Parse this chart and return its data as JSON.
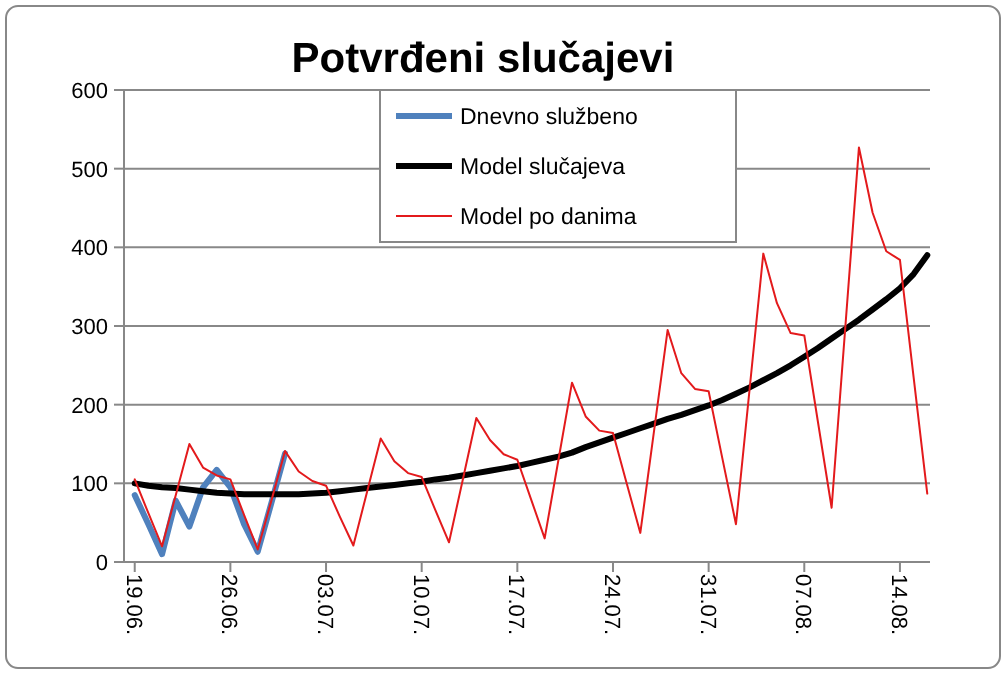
{
  "chart_data": {
    "type": "line",
    "title": "Potvrđeni slučajevi",
    "categories": [
      "19.06.",
      null,
      null,
      null,
      null,
      null,
      null,
      "26.06.",
      null,
      null,
      null,
      null,
      null,
      null,
      "03.07.",
      null,
      null,
      null,
      null,
      null,
      null,
      "10.07.",
      null,
      null,
      null,
      null,
      null,
      null,
      "17.07.",
      null,
      null,
      null,
      null,
      null,
      null,
      "24.07.",
      null,
      null,
      null,
      null,
      null,
      null,
      "31.07.",
      null,
      null,
      null,
      null,
      null,
      null,
      "07.08.",
      null,
      null,
      null,
      null,
      null,
      null,
      "14.08.",
      null,
      null
    ],
    "series": [
      {
        "name": "Dnevno službeno",
        "color": "#4f81bd",
        "values": [
          85,
          48,
          10,
          78,
          45,
          95,
          117,
          95,
          48,
          13,
          75,
          138,
          null,
          null,
          null,
          null,
          null,
          null,
          null,
          null,
          null,
          null,
          null,
          null,
          null,
          null,
          null,
          null,
          null,
          null,
          null,
          null,
          null,
          null,
          null,
          null,
          null,
          null,
          null,
          null,
          null,
          null,
          null,
          null,
          null,
          null,
          null,
          null,
          null,
          null,
          null,
          null,
          null,
          null,
          null,
          null,
          null,
          null,
          null
        ]
      },
      {
        "name": "Model slučajeva",
        "color": "#000000",
        "values": [
          100,
          97,
          95,
          94,
          92,
          90,
          88,
          87,
          86,
          86,
          86,
          86,
          86,
          87,
          88,
          90,
          92,
          94,
          96,
          98,
          100,
          102,
          105,
          107,
          110,
          113,
          116,
          119,
          122,
          126,
          130,
          134,
          139,
          146,
          152,
          158,
          164,
          170,
          176,
          182,
          187,
          193,
          199,
          206,
          214,
          222,
          231,
          240,
          250,
          261,
          272,
          284,
          296,
          308,
          321,
          334,
          348,
          366,
          390
        ]
      },
      {
        "name": "Model po danima",
        "color": "#e31a1c",
        "values": [
          105,
          62,
          20,
          85,
          150,
          120,
          110,
          105,
          60,
          16,
          78,
          141,
          115,
          103,
          97,
          58,
          21,
          89,
          157,
          128,
          113,
          108,
          66,
          25,
          104,
          183,
          155,
          137,
          130,
          80,
          30,
          129,
          228,
          185,
          167,
          164,
          100,
          37,
          166,
          295,
          240,
          220,
          217,
          132,
          48,
          220,
          392,
          329,
          291,
          288,
          178,
          69,
          298,
          527,
          444,
          395,
          384,
          235,
          87
        ]
      }
    ],
    "ylim": [
      0,
      600
    ],
    "yticks": [
      0,
      100,
      200,
      300,
      400,
      500,
      600
    ],
    "grid": "y",
    "legend": "top right",
    "marker": "none",
    "line_style": "solid"
  }
}
